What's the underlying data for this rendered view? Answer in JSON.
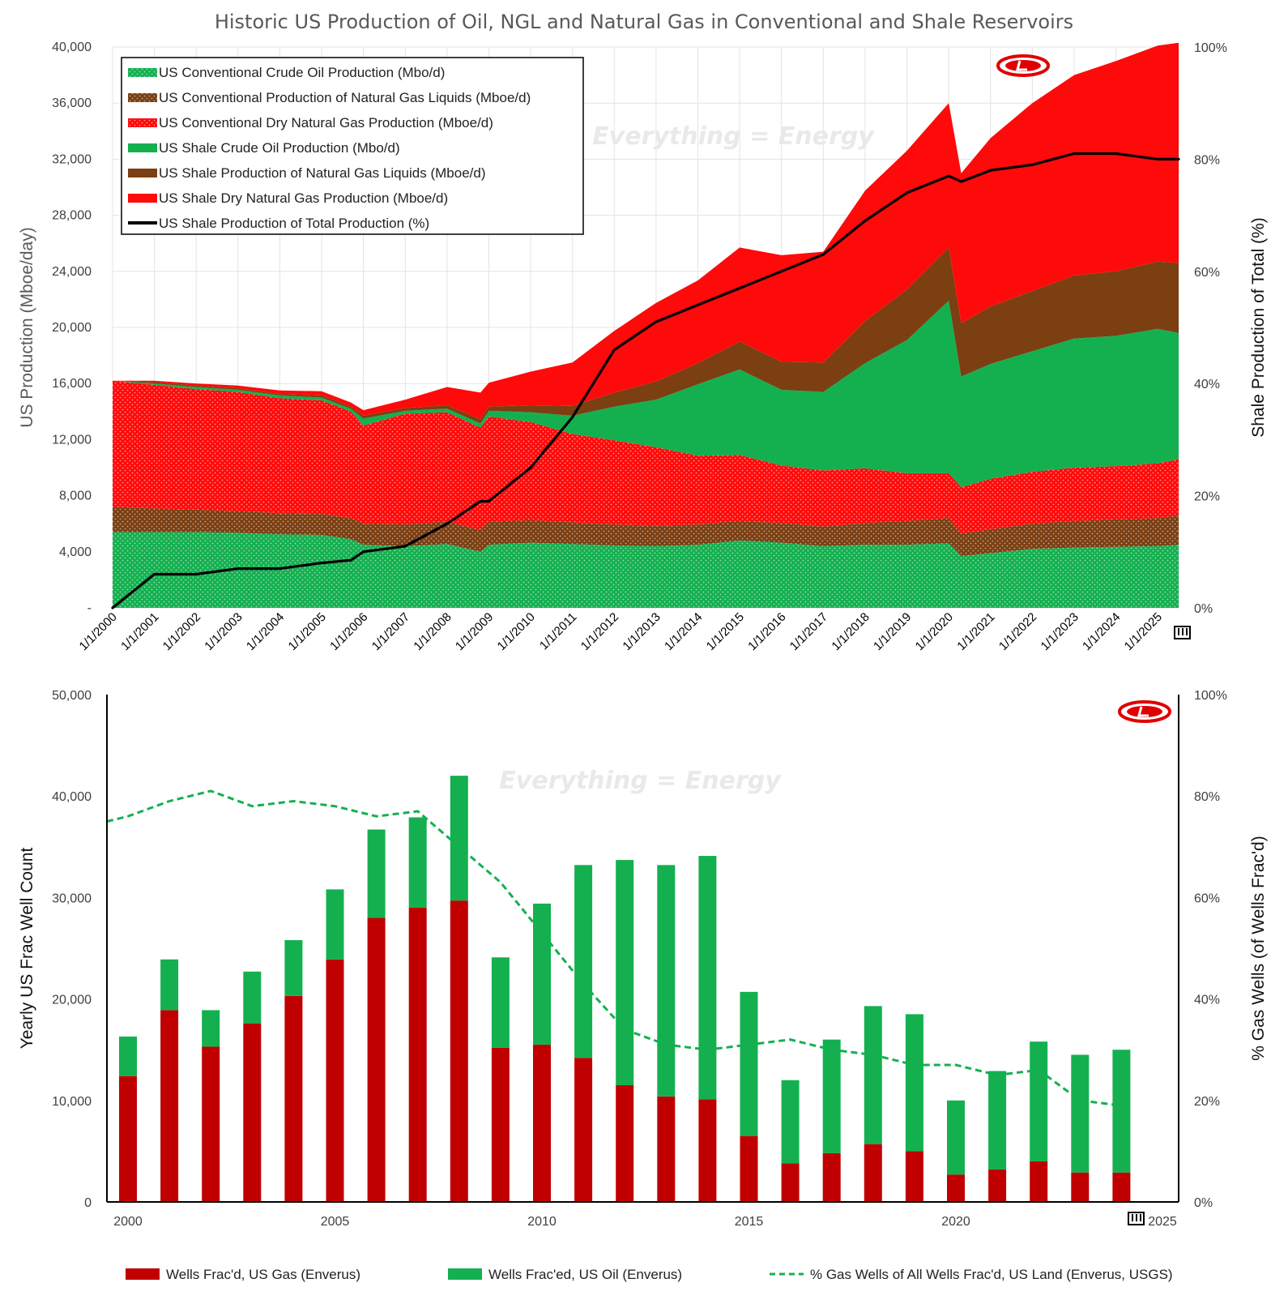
{
  "top_chart": {
    "title": "Historic US Production of Oil, NGL and Natural Gas in Conventional and Shale Reservoirs",
    "y_left_label": "US Production (Mboe/day)",
    "y_right_label": "Shale Production of Total (%)",
    "y_left_ticks": [
      "-",
      "4,000",
      "8,000",
      "12,000",
      "16,000",
      "20,000",
      "24,000",
      "28,000",
      "32,000",
      "36,000",
      "40,000"
    ],
    "y_right_ticks": [
      "0%",
      "20%",
      "40%",
      "60%",
      "80%",
      "100%"
    ],
    "x_ticks": [
      "1/1/2000",
      "1/1/2001",
      "1/1/2002",
      "1/1/2003",
      "1/1/2004",
      "1/1/2005",
      "1/1/2006",
      "1/1/2007",
      "1/1/2008",
      "1/1/2009",
      "1/1/2010",
      "1/1/2011",
      "1/1/2012",
      "1/1/2013",
      "1/1/2014",
      "1/1/2015",
      "1/1/2016",
      "1/1/2017",
      "1/1/2018",
      "1/1/2019",
      "1/1/2020",
      "1/1/2021",
      "1/1/2022",
      "1/1/2023",
      "1/1/2024",
      "1/1/2025"
    ],
    "watermark": "Everything = Energy",
    "legend": [
      {
        "label": "US Conventional Crude Oil Production (Mbo/d)",
        "color": "#14b050",
        "style": "dotted"
      },
      {
        "label": "US Conventional Production of Natural Gas Liquids (Mboe/d)",
        "color": "#7b3f12",
        "style": "dotted"
      },
      {
        "label": "US Conventional Dry Natural Gas Production (Mboe/d)",
        "color": "#ff0a0a",
        "style": "dotted"
      },
      {
        "label": "US Shale Crude Oil Production (Mbo/d)",
        "color": "#14b050",
        "style": "solid"
      },
      {
        "label": "US Shale Production of Natural Gas Liquids (Mboe/d)",
        "color": "#7b3f12",
        "style": "solid"
      },
      {
        "label": "US Shale Dry Natural Gas Production (Mboe/d)",
        "color": "#ff0a0a",
        "style": "solid"
      },
      {
        "label": "US Shale Production of Total Production (%)",
        "color": "#000000",
        "style": "line"
      }
    ]
  },
  "bottom_chart": {
    "y_left_label": "Yearly US Frac Well Count",
    "y_right_label": "% Gas Wells (of Wells Frac'd)",
    "y_left_ticks": [
      "0",
      "10,000",
      "20,000",
      "30,000",
      "40,000",
      "50,000"
    ],
    "y_right_ticks": [
      "0%",
      "20%",
      "40%",
      "60%",
      "80%",
      "100%"
    ],
    "x_ticks": [
      "2000",
      "2005",
      "2010",
      "2015",
      "2020",
      "2025"
    ],
    "watermark": "Everything = Energy",
    "legend": [
      {
        "label": "Wells Frac'd, US Gas (Enverus)",
        "color": "#c00000"
      },
      {
        "label": "Wells Frac'ed, US Oil (Enverus)",
        "color": "#14b050"
      },
      {
        "label": "% Gas Wells of All Wells Frac'd, US Land (Enverus, USGS)",
        "color": "#14b050"
      }
    ]
  },
  "chart_data": [
    {
      "type": "area",
      "title": "Historic US Production of Oil, NGL and Natural Gas in Conventional and Shale Reservoirs",
      "xlabel": "",
      "ylabel": "US Production (Mboe/day)",
      "y2label": "Shale Production of Total (%)",
      "ylim": [
        0,
        40000
      ],
      "y2lim": [
        0,
        100
      ],
      "x": [
        2000.0,
        2001.0,
        2002.0,
        2003.0,
        2004.0,
        2005.0,
        2005.7,
        2006.0,
        2007.0,
        2008.0,
        2008.8,
        2009.0,
        2010.0,
        2011.0,
        2012.0,
        2013.0,
        2014.0,
        2015.0,
        2016.0,
        2017.0,
        2018.0,
        2019.0,
        2020.0,
        2020.3,
        2021.0,
        2022.0,
        2023.0,
        2024.0,
        2025.0,
        2025.5
      ],
      "series": [
        {
          "name": "US Conventional Crude Oil Production (Mbo/d)",
          "values": [
            5400,
            5400,
            5400,
            5350,
            5250,
            5200,
            4900,
            4500,
            4400,
            4550,
            4000,
            4500,
            4650,
            4550,
            4450,
            4400,
            4500,
            4800,
            4650,
            4400,
            4500,
            4500,
            4600,
            3700,
            3900,
            4200,
            4300,
            4350,
            4400,
            4500
          ]
        },
        {
          "name": "US Conventional Production of Natural Gas Liquids (Mboe/d)",
          "values": [
            1800,
            1700,
            1600,
            1550,
            1500,
            1500,
            1500,
            1500,
            1550,
            1600,
            1550,
            1650,
            1600,
            1550,
            1500,
            1450,
            1450,
            1400,
            1400,
            1400,
            1550,
            1700,
            1800,
            1600,
            1700,
            1800,
            1900,
            1950,
            2000,
            2100
          ]
        },
        {
          "name": "US Conventional Dry Natural Gas Production (Mboe/d)",
          "values": [
            9000,
            8800,
            8600,
            8500,
            8200,
            8100,
            7600,
            7000,
            7900,
            7800,
            7300,
            7500,
            7000,
            6300,
            6000,
            5600,
            4900,
            4700,
            4100,
            4000,
            3900,
            3400,
            3200,
            3300,
            3600,
            3700,
            3800,
            3800,
            3900,
            4000
          ]
        },
        {
          "name": "US Shale Crude Oil Production (Mbo/d)",
          "values": [
            0,
            100,
            150,
            150,
            200,
            200,
            200,
            500,
            200,
            250,
            300,
            400,
            700,
            1300,
            2400,
            3400,
            5100,
            6100,
            5400,
            5600,
            7500,
            9500,
            12300,
            7900,
            8200,
            8600,
            9200,
            9300,
            9600,
            9000
          ]
        },
        {
          "name": "US Shale Production of Natural Gas Liquids (Mboe/d)",
          "values": [
            0,
            100,
            100,
            100,
            100,
            150,
            150,
            200,
            200,
            250,
            300,
            300,
            500,
            700,
            1000,
            1300,
            1500,
            2000,
            2000,
            2100,
            3000,
            3600,
            3800,
            3800,
            4100,
            4300,
            4500,
            4600,
            4800,
            5000
          ]
        },
        {
          "name": "US Shale Dry Natural Gas Production (Mboe/d)",
          "values": [
            0,
            100,
            150,
            200,
            250,
            300,
            300,
            400,
            600,
            1300,
            1900,
            1700,
            2400,
            3100,
            4400,
            5600,
            5900,
            6700,
            7600,
            7900,
            9300,
            9900,
            10300,
            10700,
            12000,
            13400,
            14300,
            15000,
            15400,
            15700
          ]
        },
        {
          "name": "US Shale Production of Total Production (%)",
          "axis": "right",
          "values": [
            0,
            6,
            6,
            7,
            7,
            8,
            8.5,
            10,
            11,
            15,
            19,
            19,
            25,
            34,
            46,
            51,
            54,
            57,
            60,
            63,
            69,
            74,
            77,
            76,
            78,
            79,
            81,
            81,
            80,
            80
          ]
        }
      ]
    },
    {
      "type": "bar",
      "title": "",
      "xlabel": "",
      "ylabel": "Yearly US Frac Well Count",
      "y2label": "% Gas Wells (of Wells Frac'd)",
      "ylim": [
        0,
        50000
      ],
      "y2lim": [
        0,
        100
      ],
      "categories": [
        2000,
        2001,
        2002,
        2003,
        2004,
        2005,
        2006,
        2007,
        2008,
        2009,
        2010,
        2011,
        2012,
        2013,
        2014,
        2015,
        2016,
        2017,
        2018,
        2019,
        2020,
        2021,
        2022,
        2023,
        2024
      ],
      "series": [
        {
          "name": "Wells Frac'd, US Gas (Enverus)",
          "values": [
            12400,
            18900,
            15300,
            17600,
            20300,
            23900,
            28000,
            29000,
            29700,
            15200,
            15500,
            14200,
            11500,
            10400,
            10100,
            6500,
            3800,
            4800,
            5700,
            5000,
            2700,
            3200,
            4000,
            2900,
            2900
          ]
        },
        {
          "name": "Wells Frac'ed, US Oil (Enverus)",
          "values": [
            3900,
            5000,
            3600,
            5100,
            5500,
            6900,
            8700,
            8900,
            12300,
            8900,
            13900,
            19000,
            22200,
            22800,
            24000,
            14200,
            8200,
            11200,
            13600,
            13500,
            7300,
            9700,
            11800,
            11600,
            12100
          ]
        },
        {
          "name": "% Gas Wells of All Wells Frac'd, US Land (Enverus, USGS)",
          "axis": "right",
          "values": [
            76,
            79,
            81,
            78,
            79,
            78,
            76,
            77,
            70,
            63,
            53,
            43,
            34,
            31,
            30,
            31,
            32,
            30,
            29,
            27,
            27,
            25,
            26,
            20,
            19
          ]
        }
      ]
    }
  ]
}
